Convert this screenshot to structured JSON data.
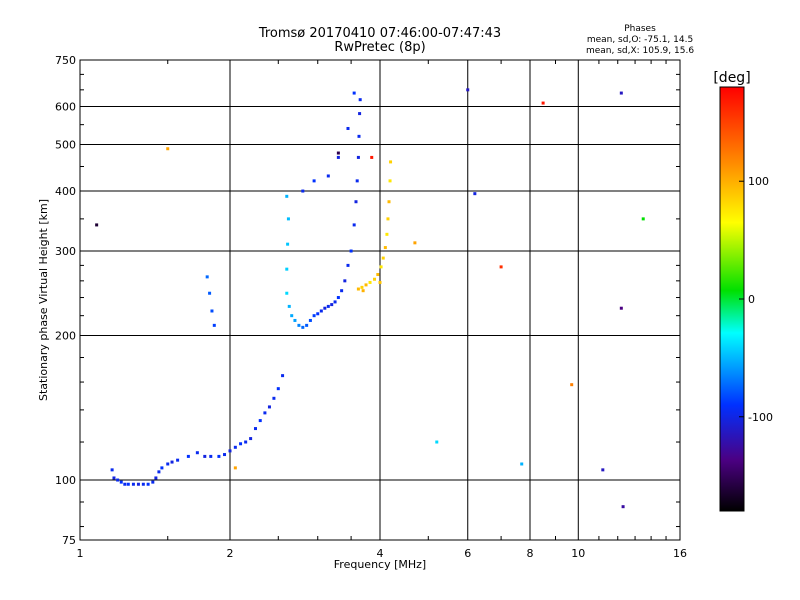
{
  "chart_data": {
    "type": "scatter",
    "title": "Tromsø 20170410 07:46:00-07:47:43",
    "subtitle": "RwPretec (8p)",
    "xlabel": "Frequency [MHz]",
    "ylabel": "Stationary phase Virtual Height [km]",
    "x_scale": "log",
    "y_scale": "log",
    "xlim": [
      1,
      16
    ],
    "ylim": [
      75,
      750
    ],
    "x_ticks": [
      1,
      2,
      4,
      6,
      8,
      10,
      16
    ],
    "y_ticks": [
      75,
      100,
      200,
      300,
      400,
      500,
      600,
      750
    ],
    "grid": true,
    "phase_legend": {
      "heading": "Phases",
      "line1": "mean, sd,O: -75.1, 14.5",
      "line2": "mean, sd,X: 105.9, 15.6"
    },
    "colorbar": {
      "label": "[deg]",
      "range": [
        -180,
        180
      ],
      "ticks": [
        100,
        0,
        -100
      ]
    },
    "series": [
      {
        "name": "O",
        "points": [
          [
            1.16,
            105,
            -95
          ],
          [
            1.17,
            101,
            -100
          ],
          [
            1.19,
            100,
            -95
          ],
          [
            1.21,
            99,
            -90
          ],
          [
            1.23,
            98,
            -95
          ],
          [
            1.25,
            98,
            -90
          ],
          [
            1.28,
            98,
            -95
          ],
          [
            1.31,
            98,
            -100
          ],
          [
            1.34,
            98,
            -95
          ],
          [
            1.37,
            98,
            -90
          ],
          [
            1.4,
            99,
            -95
          ],
          [
            1.42,
            101,
            -100
          ],
          [
            1.44,
            104,
            -95
          ],
          [
            1.46,
            106,
            -90
          ],
          [
            1.5,
            108,
            -95
          ],
          [
            1.53,
            109,
            -100
          ],
          [
            1.57,
            110,
            -95
          ],
          [
            1.65,
            112,
            -90
          ],
          [
            1.72,
            114,
            -95
          ],
          [
            1.78,
            112,
            -100
          ],
          [
            1.83,
            112,
            -95
          ],
          [
            1.9,
            112,
            -90
          ],
          [
            1.95,
            113,
            -95
          ],
          [
            2.0,
            115,
            -100
          ],
          [
            2.05,
            117,
            -95
          ],
          [
            2.1,
            119,
            -90
          ],
          [
            2.15,
            120,
            -95
          ],
          [
            2.2,
            122,
            -100
          ],
          [
            2.25,
            128,
            -95
          ],
          [
            2.3,
            133,
            -90
          ],
          [
            2.35,
            138,
            -95
          ],
          [
            2.4,
            142,
            -100
          ],
          [
            2.45,
            148,
            -95
          ],
          [
            2.5,
            155,
            -90
          ],
          [
            2.55,
            165,
            -95
          ],
          [
            2.6,
            245,
            -20
          ],
          [
            2.6,
            275,
            -25
          ],
          [
            2.61,
            310,
            -30
          ],
          [
            2.62,
            350,
            -35
          ],
          [
            2.6,
            390,
            -40
          ],
          [
            2.63,
            230,
            -40
          ],
          [
            2.66,
            220,
            -45
          ],
          [
            2.7,
            215,
            -50
          ],
          [
            2.75,
            210,
            -60
          ],
          [
            2.8,
            208,
            -70
          ],
          [
            2.85,
            210,
            -75
          ],
          [
            2.9,
            215,
            -80
          ],
          [
            2.95,
            220,
            -85
          ],
          [
            3.0,
            222,
            -90
          ],
          [
            3.05,
            225,
            -95
          ],
          [
            3.1,
            228,
            -100
          ],
          [
            3.15,
            230,
            -95
          ],
          [
            3.2,
            232,
            -100
          ],
          [
            3.25,
            235,
            -95
          ],
          [
            3.3,
            240,
            -90
          ],
          [
            3.35,
            248,
            -95
          ],
          [
            3.4,
            260,
            -100
          ],
          [
            3.45,
            280,
            -95
          ],
          [
            3.5,
            300,
            -90
          ],
          [
            3.55,
            340,
            -95
          ],
          [
            3.58,
            380,
            -100
          ],
          [
            3.6,
            420,
            -95
          ],
          [
            3.62,
            470,
            -100
          ],
          [
            3.63,
            520,
            -95
          ],
          [
            3.64,
            580,
            -100
          ],
          [
            3.65,
            620,
            -95
          ],
          [
            3.55,
            640,
            -90
          ],
          [
            3.45,
            540,
            -95
          ],
          [
            3.3,
            470,
            -100
          ],
          [
            3.15,
            430,
            -95
          ],
          [
            2.95,
            420,
            -90
          ],
          [
            2.8,
            400,
            -95
          ],
          [
            1.8,
            265,
            -70
          ],
          [
            1.82,
            245,
            -75
          ],
          [
            1.84,
            225,
            -80
          ],
          [
            1.86,
            210,
            -85
          ],
          [
            5.2,
            120,
            -20
          ],
          [
            7.7,
            108,
            -40
          ],
          [
            11.2,
            105,
            -110
          ],
          [
            12.3,
            88,
            -120
          ],
          [
            6.2,
            395,
            -100
          ],
          [
            6.0,
            650,
            -110
          ],
          [
            12.2,
            640,
            -110
          ],
          [
            12.2,
            228,
            -130
          ]
        ]
      },
      {
        "name": "X",
        "points": [
          [
            3.62,
            250,
            110
          ],
          [
            3.68,
            252,
            105
          ],
          [
            3.75,
            255,
            110
          ],
          [
            3.82,
            258,
            100
          ],
          [
            3.9,
            262,
            105
          ],
          [
            3.96,
            268,
            110
          ],
          [
            4.02,
            278,
            100
          ],
          [
            4.06,
            290,
            105
          ],
          [
            4.1,
            305,
            110
          ],
          [
            4.13,
            325,
            100
          ],
          [
            4.15,
            350,
            105
          ],
          [
            4.17,
            380,
            110
          ],
          [
            4.19,
            420,
            100
          ],
          [
            4.2,
            460,
            105
          ],
          [
            4.0,
            258,
            108
          ],
          [
            3.7,
            248,
            112
          ],
          [
            4.7,
            312,
            115
          ],
          [
            1.5,
            490,
            115
          ],
          [
            2.05,
            106,
            115
          ],
          [
            9.7,
            158,
            125
          ],
          [
            13.5,
            350,
            40
          ],
          [
            7.0,
            278,
            160
          ],
          [
            3.85,
            470,
            170
          ],
          [
            8.5,
            610,
            170
          ],
          [
            3.3,
            480,
            -150
          ],
          [
            1.08,
            340,
            -160
          ]
        ]
      }
    ]
  }
}
